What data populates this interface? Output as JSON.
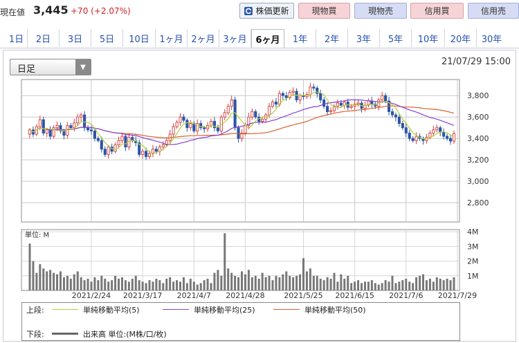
{
  "header": {
    "price_label": "現在値",
    "price": "3,445",
    "change": "+70 (+2.07%)",
    "update_button": "株価更新",
    "buttons": [
      "現物買",
      "現物売",
      "信用買",
      "信用売"
    ]
  },
  "tabs": [
    "1日",
    "2日",
    "3日",
    "5日",
    "10日",
    "1ヶ月",
    "2ヶ月",
    "3ヶ月",
    "6ヶ月",
    "1年",
    "2年",
    "3年",
    "5年",
    "10年",
    "20年",
    "30年"
  ],
  "active_tab": "6ヶ月",
  "chart_select": "日足",
  "datetime": "21/07/29 15:00",
  "legend": {
    "top_label": "上段:",
    "bottom_label": "下段:",
    "ma5": "単純移動平均(5)",
    "ma25": "単純移動平均(25)",
    "ma50": "単純移動平均(50)",
    "volume": "出来高 単位:(M株/口/枚)"
  },
  "colors": {
    "up": "#d63b3b",
    "down": "#2b55a8",
    "ma5": "#b6cf3c",
    "ma25": "#8a3fd0",
    "ma50": "#d9602e",
    "volume": "#777777",
    "accent_red": "#d0202a"
  },
  "chart_data": {
    "type": "candlestick",
    "price_axis": {
      "ticks": [
        2800,
        3000,
        3200,
        3400,
        3600,
        3800
      ],
      "tick_labels": [
        "2,800",
        "3,000",
        "3,200",
        "3,400",
        "3,600",
        "3,800"
      ],
      "range": [
        2620,
        3950
      ]
    },
    "volume_axis": {
      "unit_label": "単位: M",
      "ticks": [
        1,
        2,
        3,
        4
      ],
      "tick_labels": [
        "1M",
        "2M",
        "3M",
        "4M"
      ],
      "range": [
        0,
        4.15
      ]
    },
    "x_labels": [
      "2021/2/24",
      "2021/3/17",
      "2021/4/7",
      "2021/4/28",
      "2021/5/25",
      "2021/6/15",
      "2021/7/6",
      "2021/7/29"
    ],
    "x_label_index": [
      18,
      33,
      48,
      63,
      80,
      95,
      110,
      125
    ],
    "closes": [
      3480,
      3440,
      3510,
      3575,
      3450,
      3480,
      3420,
      3500,
      3520,
      3470,
      3430,
      3520,
      3500,
      3545,
      3600,
      3620,
      3500,
      3480,
      3470,
      3400,
      3380,
      3300,
      3250,
      3320,
      3280,
      3340,
      3380,
      3420,
      3320,
      3410,
      3380,
      3360,
      3250,
      3280,
      3230,
      3260,
      3300,
      3280,
      3320,
      3340,
      3380,
      3440,
      3510,
      3550,
      3600,
      3570,
      3500,
      3540,
      3470,
      3540,
      3500,
      3490,
      3520,
      3560,
      3500,
      3470,
      3600,
      3640,
      3700,
      3760,
      3500,
      3400,
      3450,
      3520,
      3600,
      3650,
      3600,
      3560,
      3580,
      3620,
      3700,
      3740,
      3720,
      3820,
      3800,
      3780,
      3830,
      3840,
      3760,
      3800,
      3790,
      3810,
      3880,
      3870,
      3820,
      3760,
      3700,
      3650,
      3660,
      3700,
      3730,
      3710,
      3740,
      3690,
      3700,
      3720,
      3730,
      3680,
      3710,
      3750,
      3720,
      3700,
      3760,
      3800,
      3750,
      3650,
      3620,
      3600,
      3540,
      3500,
      3450,
      3400,
      3380,
      3420,
      3400,
      3380,
      3410,
      3450,
      3480,
      3500,
      3460,
      3420,
      3400,
      3375,
      3445
    ],
    "volume": [
      3.2,
      2.0,
      1.2,
      1.8,
      1.5,
      1.3,
      1.4,
      1.2,
      1.1,
      1.3,
      0.9,
      1.0,
      0.8,
      1.1,
      1.3,
      0.9,
      0.7,
      0.8,
      0.6,
      0.9,
      0.7,
      1.0,
      0.8,
      0.6,
      0.7,
      1.0,
      0.8,
      0.9,
      0.7,
      0.6,
      0.8,
      1.0,
      0.7,
      0.6,
      0.5,
      0.7,
      0.6,
      0.8,
      0.7,
      0.5,
      0.8,
      0.9,
      0.6,
      0.7,
      0.6,
      0.9,
      0.5,
      0.8,
      0.6,
      0.4,
      0.5,
      0.7,
      0.8,
      0.5,
      1.2,
      1.4,
      1.0,
      3.9,
      1.5,
      1.2,
      1.0,
      0.9,
      1.3,
      1.1,
      1.4,
      0.9,
      1.0,
      0.8,
      1.2,
      0.9,
      1.0,
      0.7,
      1.0,
      0.9,
      1.1,
      1.3,
      1.0,
      0.9,
      1.0,
      1.1,
      2.2,
      1.3,
      1.5,
      1.0,
      1.0,
      0.8,
      0.7,
      0.9,
      0.8,
      1.2,
      0.6,
      1.1,
      0.8,
      1.0,
      0.5,
      0.6,
      0.7,
      0.5,
      0.6,
      0.6,
      0.7,
      0.5,
      0.4,
      0.5,
      0.7,
      0.6,
      1.0,
      0.5,
      0.6,
      0.7,
      0.8,
      0.6,
      0.5,
      0.9,
      1.0,
      1.1,
      0.7,
      0.8,
      0.6,
      0.9,
      0.8,
      0.7,
      0.8,
      0.7,
      0.9
    ],
    "series": [
      {
        "name": "単純移動平均(5)"
      },
      {
        "name": "単純移動平均(25)"
      },
      {
        "name": "単純移動平均(50)"
      }
    ],
    "grid": true
  }
}
